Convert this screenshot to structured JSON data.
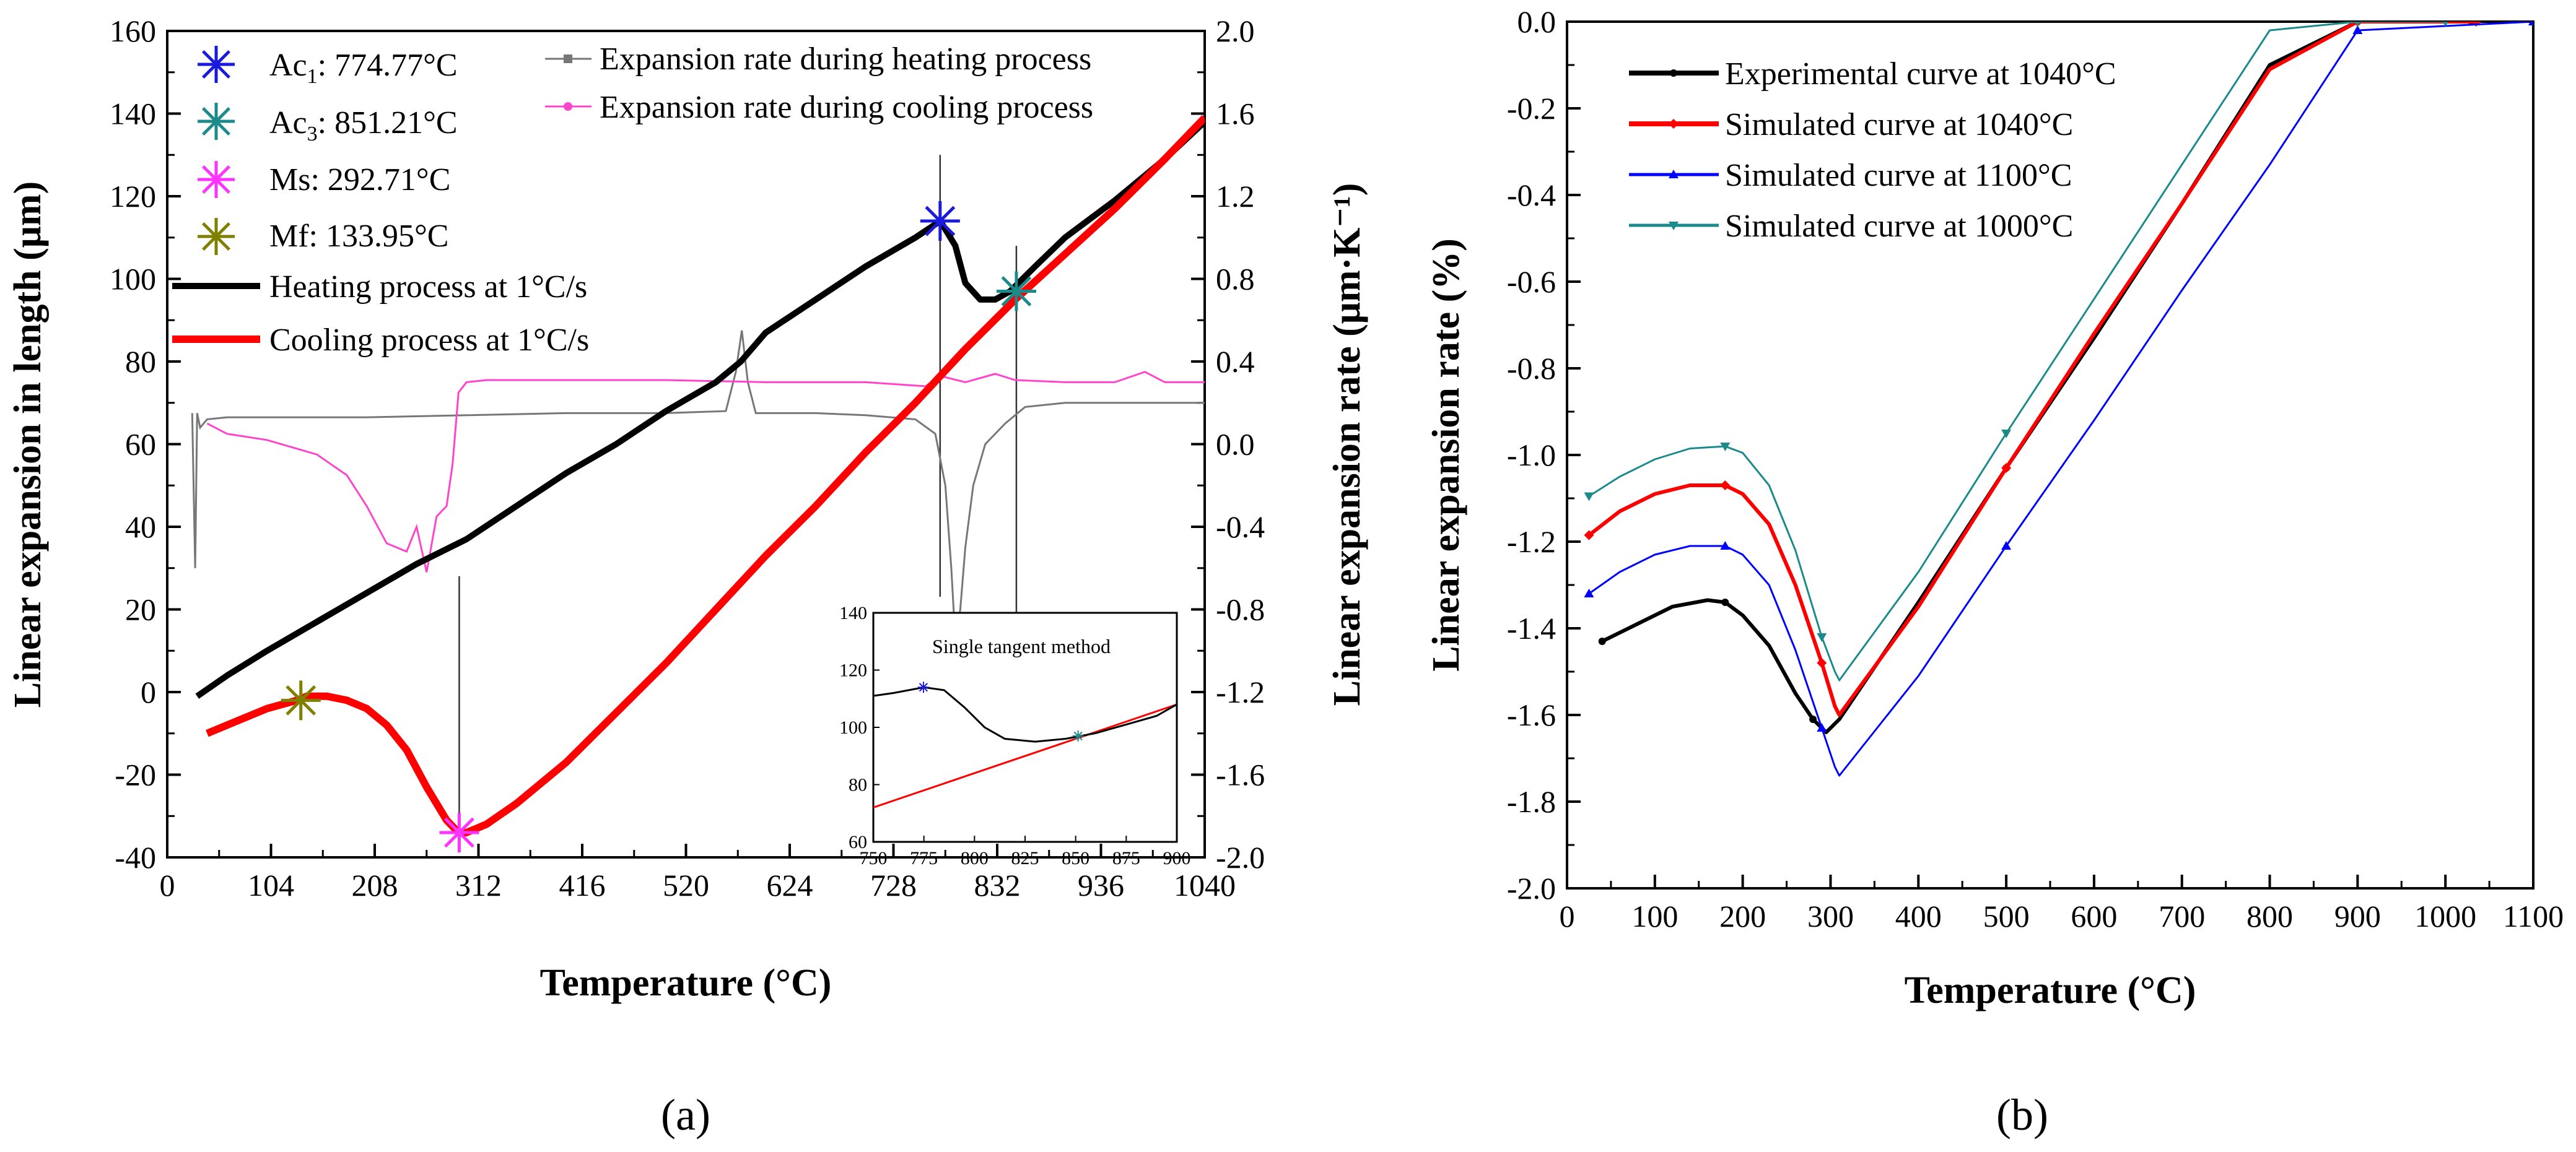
{
  "figure": {
    "panel_a_label": "(a)",
    "panel_b_label": "(b)"
  },
  "chart_data": [
    {
      "panel": "(a)",
      "type": "line",
      "title": "",
      "xlabel": "Temperature (°C)",
      "ylabel": "Linear expansion in length (μm)",
      "ylabel2": "Linear expansion rate (μm·K⁻¹)",
      "xlim": [
        0,
        1040
      ],
      "ylim": [
        -40,
        160
      ],
      "y2lim": [
        -2.0,
        2.0
      ],
      "xticks": [
        "0",
        "104",
        "208",
        "312",
        "416",
        "520",
        "624",
        "728",
        "832",
        "936",
        "1040"
      ],
      "yticks": [
        "-40",
        "-20",
        "0",
        "20",
        "40",
        "60",
        "80",
        "100",
        "120",
        "140",
        "160"
      ],
      "y2ticks": [
        "-2.0",
        "-1.6",
        "-1.2",
        "-0.8",
        "-0.4",
        "0.0",
        "0.4",
        "0.8",
        "1.2",
        "1.6",
        "2.0"
      ],
      "transformation_points": [
        {
          "name": "Ac1",
          "label": "Ac1: 774.77°C",
          "sub": "1",
          "x": 774.77,
          "y": 114,
          "color": "#1a1adc"
        },
        {
          "name": "Ac3",
          "label": "Ac3: 851.21°C",
          "sub": "3",
          "x": 851.21,
          "y": 97,
          "color": "#1a8a8a"
        },
        {
          "name": "Ms",
          "label": "Ms: 292.71°C",
          "x": 292.71,
          "y": -34,
          "color": "#ff33ff"
        },
        {
          "name": "Mf",
          "label": "Mf: 133.95°C",
          "x": 133.95,
          "y": -2,
          "color": "#808000"
        }
      ],
      "series": [
        {
          "name": "Heating process at 1°C/s",
          "axis": "left",
          "color": "#000000",
          "x": [
            30,
            60,
            100,
            150,
            200,
            250,
            300,
            350,
            400,
            450,
            500,
            550,
            575,
            600,
            650,
            700,
            750,
            775,
            790,
            800,
            815,
            830,
            845,
            870,
            900,
            950,
            1000,
            1040
          ],
          "y": [
            -1,
            4,
            10,
            17,
            24,
            31,
            37,
            45,
            53,
            60,
            68,
            75,
            80,
            87,
            95,
            103,
            110,
            114,
            108,
            99,
            95,
            95,
            97,
            103,
            110,
            119,
            129,
            138
          ]
        },
        {
          "name": "Cooling process at 1°C/s",
          "axis": "left",
          "color": "#ff0000",
          "x": [
            1040,
            1000,
            950,
            900,
            850,
            800,
            750,
            700,
            650,
            600,
            550,
            500,
            450,
            400,
            350,
            320,
            300,
            292,
            280,
            260,
            240,
            220,
            200,
            180,
            160,
            140,
            130,
            100,
            70,
            40
          ],
          "y": [
            139,
            129,
            117,
            106,
            95,
            83,
            70,
            58,
            45,
            33,
            20,
            7,
            -5,
            -17,
            -27,
            -32,
            -34,
            -34,
            -31,
            -23,
            -14,
            -8,
            -4,
            -2,
            -1,
            -1,
            -2,
            -4,
            -7,
            -10
          ]
        },
        {
          "name": "Expansion rate during heating process",
          "axis": "right",
          "color": "#777777",
          "x": [
            25,
            28,
            30,
            33,
            40,
            60,
            100,
            200,
            300,
            400,
            500,
            560,
            570,
            576,
            582,
            590,
            600,
            650,
            700,
            750,
            770,
            780,
            786,
            790,
            795,
            800,
            808,
            820,
            840,
            860,
            900,
            950,
            1000,
            1040
          ],
          "y": [
            0.15,
            -0.6,
            0.15,
            0.08,
            0.12,
            0.13,
            0.13,
            0.13,
            0.14,
            0.15,
            0.15,
            0.16,
            0.35,
            0.55,
            0.3,
            0.15,
            0.15,
            0.15,
            0.14,
            0.12,
            0.05,
            -0.2,
            -0.6,
            -0.95,
            -0.8,
            -0.5,
            -0.2,
            0.0,
            0.1,
            0.18,
            0.2,
            0.2,
            0.2,
            0.2
          ]
        },
        {
          "name": "Expansion rate during cooling process",
          "axis": "right",
          "color": "#ff44cc",
          "x": [
            40,
            60,
            100,
            150,
            180,
            200,
            220,
            240,
            250,
            260,
            270,
            280,
            286,
            292,
            300,
            320,
            400,
            500,
            600,
            700,
            760,
            775,
            800,
            830,
            850,
            900,
            950,
            980,
            1000,
            1040
          ],
          "y": [
            0.1,
            0.05,
            0.02,
            -0.05,
            -0.15,
            -0.3,
            -0.48,
            -0.52,
            -0.4,
            -0.62,
            -0.35,
            -0.3,
            -0.1,
            0.25,
            0.3,
            0.31,
            0.31,
            0.31,
            0.3,
            0.3,
            0.28,
            0.33,
            0.3,
            0.34,
            0.31,
            0.3,
            0.3,
            0.35,
            0.3,
            0.3
          ]
        }
      ],
      "legend": {
        "markers": [
          "Ac1: 774.77°C",
          "Ac3: 851.21°C",
          "Ms: 292.71°C",
          "Mf: 133.95°C"
        ],
        "lines": [
          "Heating process at 1°C/s",
          "Cooling process at 1°C/s"
        ],
        "rates": [
          "Expansion rate during heating process",
          "Expansion rate during cooling process"
        ]
      },
      "inset": {
        "title": "Single tangent method",
        "xlim": [
          750,
          900
        ],
        "ylim": [
          60,
          140
        ],
        "xticks": [
          "750",
          "775",
          "800",
          "825",
          "850",
          "875",
          "900"
        ],
        "yticks": [
          "60",
          "80",
          "100",
          "120",
          "140"
        ],
        "heating": {
          "x": [
            750,
            760,
            775,
            785,
            795,
            805,
            815,
            830,
            845,
            860,
            875,
            890,
            900
          ],
          "y": [
            111,
            112,
            114,
            113,
            107,
            100,
            96,
            95,
            96,
            98,
            101,
            104,
            108
          ]
        },
        "tangent": {
          "x": [
            750,
            900
          ],
          "y": [
            72,
            108
          ]
        },
        "points": [
          {
            "name": "Ac1",
            "x": 774.77,
            "y": 114,
            "color": "#1a1adc"
          },
          {
            "name": "Ac3",
            "x": 851.21,
            "y": 97,
            "color": "#1a8a8a"
          }
        ]
      }
    },
    {
      "panel": "(b)",
      "type": "line",
      "title": "",
      "xlabel": "Temperature (°C)",
      "ylabel": "Linear expansion rate (%)",
      "xlim": [
        0,
        1100
      ],
      "ylim": [
        -2.0,
        0.0
      ],
      "xticks": [
        "0",
        "100",
        "200",
        "300",
        "400",
        "500",
        "600",
        "700",
        "800",
        "900",
        "1000",
        "1100"
      ],
      "yticks": [
        "-2.0",
        "-1.8",
        "-1.6",
        "-1.4",
        "-1.2",
        "-1.0",
        "-0.8",
        "-0.6",
        "-0.4",
        "-0.2",
        "0.0"
      ],
      "series": [
        {
          "name": "Experimental curve at 1040°C",
          "color": "#000000",
          "x": [
            40,
            80,
            120,
            160,
            180,
            200,
            230,
            260,
            280,
            295,
            310,
            400,
            500,
            600,
            700,
            800,
            900,
            1000,
            1030
          ],
          "y": [
            -1.43,
            -1.39,
            -1.35,
            -1.335,
            -1.34,
            -1.37,
            -1.44,
            -1.55,
            -1.61,
            -1.64,
            -1.61,
            -1.34,
            -1.03,
            -0.73,
            -0.42,
            -0.1,
            0.0,
            0.0,
            0.0
          ]
        },
        {
          "name": "Simulated curve at 1040°C",
          "color": "#ff0000",
          "x": [
            25,
            60,
            100,
            140,
            180,
            200,
            230,
            260,
            290,
            305,
            310,
            400,
            500,
            600,
            700,
            800,
            900,
            1000,
            1035
          ],
          "y": [
            -1.185,
            -1.13,
            -1.09,
            -1.07,
            -1.07,
            -1.09,
            -1.16,
            -1.3,
            -1.48,
            -1.58,
            -1.6,
            -1.35,
            -1.03,
            -0.72,
            -0.42,
            -0.11,
            0.0,
            0.0,
            0.0
          ]
        },
        {
          "name": "Simulated curve at 1100°C",
          "color": "#0000ff",
          "x": [
            25,
            60,
            100,
            140,
            180,
            200,
            230,
            260,
            290,
            305,
            310,
            400,
            500,
            600,
            700,
            800,
            900,
            1000,
            1100
          ],
          "y": [
            -1.32,
            -1.27,
            -1.23,
            -1.21,
            -1.21,
            -1.23,
            -1.3,
            -1.45,
            -1.63,
            -1.72,
            -1.74,
            -1.51,
            -1.21,
            -0.92,
            -0.62,
            -0.33,
            -0.02,
            -0.01,
            0.0
          ]
        },
        {
          "name": "Simulated curve at 1000°C",
          "color": "#1a8a8a",
          "x": [
            25,
            60,
            100,
            140,
            180,
            200,
            230,
            260,
            290,
            305,
            310,
            400,
            500,
            600,
            700,
            800,
            900,
            1000
          ],
          "y": [
            -1.095,
            -1.05,
            -1.01,
            -0.985,
            -0.98,
            -0.995,
            -1.07,
            -1.22,
            -1.42,
            -1.5,
            -1.52,
            -1.27,
            -0.95,
            -0.64,
            -0.33,
            -0.02,
            0.0,
            0.0
          ]
        }
      ]
    }
  ]
}
